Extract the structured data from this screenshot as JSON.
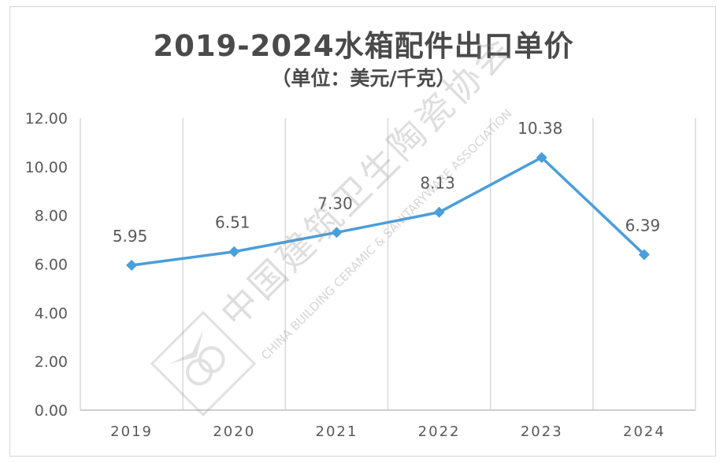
{
  "chart_data": {
    "type": "line",
    "title": "2019-2024水箱配件出口单价",
    "subtitle": "（单位：美元/千克）",
    "categories": [
      "2019",
      "2020",
      "2021",
      "2022",
      "2023",
      "2024"
    ],
    "series": [
      {
        "values": [
          5.95,
          6.51,
          7.3,
          8.13,
          10.38,
          6.39
        ],
        "labels": [
          "5.95",
          "6.51",
          "7.30",
          "8.13",
          "10.38",
          "6.39"
        ],
        "color": "#4a9edb"
      }
    ],
    "ylim": [
      0,
      12
    ],
    "yticks": [
      "0.00",
      "2.00",
      "4.00",
      "6.00",
      "8.00",
      "10.00",
      "12.00"
    ],
    "grid": "vertical",
    "legend": "none"
  },
  "watermark": {
    "cn": "中国建筑卫生陶瓷协会",
    "en": "CHINA BUILDING CERAMIC & SANITARYWARE ASSOCIATION"
  }
}
